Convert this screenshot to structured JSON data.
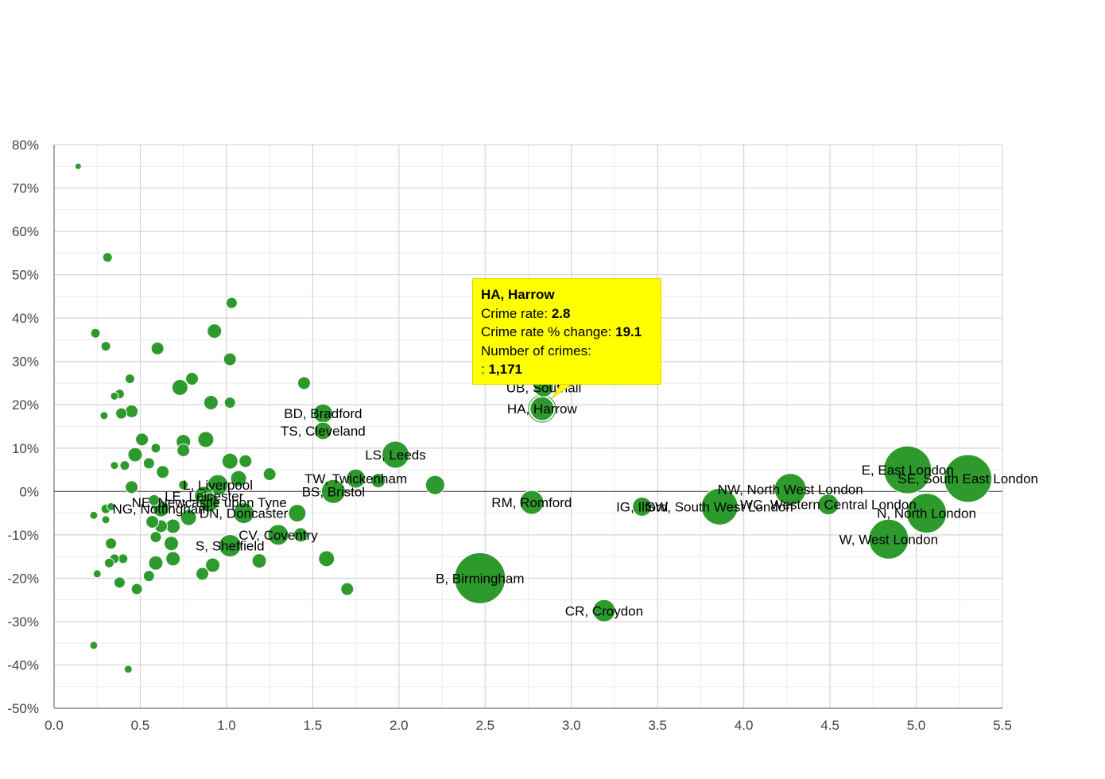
{
  "colors": {
    "bubble": "#2e9a2e",
    "bubble_stroke": "#ffffff",
    "grid": "#d0d0d0",
    "minor_grid": "#ebebeb",
    "zero_line": "#333333",
    "tooltip_bg": "#ffff00"
  },
  "tooltip": {
    "title": "HA, Harrow",
    "rate_label": "Crime rate:",
    "rate_value": "2.8",
    "change_label": "Crime rate % change:",
    "change_value": "19.1",
    "count_label": "Number of crimes:",
    "count_prefix": ":",
    "count_value": "1,171"
  },
  "chart_data": {
    "type": "scatter",
    "title": "",
    "xlabel": "",
    "ylabel": "",
    "xlim": [
      0,
      5.5
    ],
    "ylim": [
      -50,
      80
    ],
    "x_ticks": [
      "0.0",
      "0.5",
      "1.0",
      "1.5",
      "2.0",
      "2.5",
      "3.0",
      "3.5",
      "4.0",
      "4.5",
      "5.0",
      "5.5"
    ],
    "y_ticks": [
      "80%",
      "70%",
      "60%",
      "50%",
      "40%",
      "30%",
      "20%",
      "10%",
      "0%",
      "-10%",
      "-20%",
      "-30%",
      "-40%",
      "-50%"
    ],
    "grid": true,
    "highlighted": "HA, Harrow",
    "points": [
      {
        "x": 4.95,
        "y": 5,
        "size": 30,
        "label": "E, East London"
      },
      {
        "x": 5.3,
        "y": 3,
        "size": 30,
        "label": "SE, South East London"
      },
      {
        "x": 5.06,
        "y": -5,
        "size": 25,
        "label": "N, North London"
      },
      {
        "x": 4.84,
        "y": -11,
        "size": 25,
        "label": "W, West London"
      },
      {
        "x": 4.27,
        "y": 0.5,
        "size": 20,
        "label": "NW, North West London"
      },
      {
        "x": 4.49,
        "y": -3,
        "size": 13,
        "label": "WC, Western Central London"
      },
      {
        "x": 3.86,
        "y": -3.5,
        "size": 23,
        "label": "SW, South West London"
      },
      {
        "x": 3.41,
        "y": -3.5,
        "size": 12,
        "label": "IG, Ilford"
      },
      {
        "x": 2.77,
        "y": -2.5,
        "size": 15,
        "label": "RM, Romford"
      },
      {
        "x": 2.84,
        "y": 24,
        "size": 12,
        "label": "UB, Southall"
      },
      {
        "x": 2.83,
        "y": 19.1,
        "size": 15,
        "label": "HA, Harrow"
      },
      {
        "x": 3.19,
        "y": -27.5,
        "size": 14,
        "label": "CR, Croydon"
      },
      {
        "x": 2.47,
        "y": -20,
        "size": 32,
        "label": "B, Birmingham"
      },
      {
        "x": 1.98,
        "y": 8.5,
        "size": 17,
        "label": "LS, Leeds"
      },
      {
        "x": 1.56,
        "y": 18,
        "size": 12,
        "label": "BD, Bradford"
      },
      {
        "x": 1.56,
        "y": 14,
        "size": 11,
        "label": "TS, Cleveland"
      },
      {
        "x": 1.75,
        "y": 3,
        "size": 12,
        "label": "TW, Twickenham"
      },
      {
        "x": 1.62,
        "y": 0,
        "size": 15,
        "label": "BS, Bristol"
      },
      {
        "x": 1.3,
        "y": -10,
        "size": 13,
        "label": "CV, Coventry"
      },
      {
        "x": 1.02,
        "y": -12.5,
        "size": 14,
        "label": "S, Sheffield"
      },
      {
        "x": 1.1,
        "y": -5,
        "size": 13,
        "label": "DN, Doncaster"
      },
      {
        "x": 0.95,
        "y": 1.5,
        "size": 13,
        "label": "L, Liverpool"
      },
      {
        "x": 0.87,
        "y": -1,
        "size": 12,
        "label": "LE, Leicester"
      },
      {
        "x": 0.9,
        "y": -2.5,
        "size": 12,
        "label": "NE, Newcastle upon Tyne"
      },
      {
        "x": 0.62,
        "y": -4,
        "size": 10,
        "label": "NG, Nottingham"
      },
      {
        "x": 2.21,
        "y": 1.5,
        "size": 12
      },
      {
        "x": 1.88,
        "y": 2.5,
        "size": 9
      },
      {
        "x": 1.45,
        "y": 25,
        "size": 8
      },
      {
        "x": 1.58,
        "y": -15.5,
        "size": 10
      },
      {
        "x": 1.7,
        "y": -22.5,
        "size": 8
      },
      {
        "x": 1.43,
        "y": -10,
        "size": 9
      },
      {
        "x": 1.41,
        "y": -5,
        "size": 11
      },
      {
        "x": 1.25,
        "y": 4,
        "size": 8
      },
      {
        "x": 1.19,
        "y": -16,
        "size": 9
      },
      {
        "x": 1.11,
        "y": 7,
        "size": 8
      },
      {
        "x": 1.07,
        "y": 3,
        "size": 10
      },
      {
        "x": 1.03,
        "y": 43.5,
        "size": 7
      },
      {
        "x": 1.02,
        "y": 30.5,
        "size": 8
      },
      {
        "x": 1.02,
        "y": 20.5,
        "size": 7
      },
      {
        "x": 1.02,
        "y": 7,
        "size": 10
      },
      {
        "x": 0.93,
        "y": 37,
        "size": 9
      },
      {
        "x": 0.91,
        "y": 20.5,
        "size": 9
      },
      {
        "x": 0.92,
        "y": -17,
        "size": 9
      },
      {
        "x": 0.88,
        "y": 12,
        "size": 10
      },
      {
        "x": 0.86,
        "y": -19,
        "size": 8
      },
      {
        "x": 0.8,
        "y": 26,
        "size": 8
      },
      {
        "x": 0.78,
        "y": -6,
        "size": 10
      },
      {
        "x": 0.75,
        "y": 11.5,
        "size": 9
      },
      {
        "x": 0.75,
        "y": 9.5,
        "size": 8
      },
      {
        "x": 0.73,
        "y": 24,
        "size": 10
      },
      {
        "x": 0.75,
        "y": 1.5,
        "size": 6
      },
      {
        "x": 0.69,
        "y": -8,
        "size": 9
      },
      {
        "x": 0.68,
        "y": -12,
        "size": 9
      },
      {
        "x": 0.69,
        "y": -15.5,
        "size": 9
      },
      {
        "x": 0.63,
        "y": 4.5,
        "size": 8
      },
      {
        "x": 0.62,
        "y": -8,
        "size": 8
      },
      {
        "x": 0.6,
        "y": 33,
        "size": 8
      },
      {
        "x": 0.59,
        "y": 10,
        "size": 6
      },
      {
        "x": 0.59,
        "y": -10.5,
        "size": 7
      },
      {
        "x": 0.59,
        "y": -16.5,
        "size": 9
      },
      {
        "x": 0.58,
        "y": -2,
        "size": 7
      },
      {
        "x": 0.57,
        "y": -7,
        "size": 8
      },
      {
        "x": 0.55,
        "y": 6.5,
        "size": 7
      },
      {
        "x": 0.55,
        "y": -19.5,
        "size": 7
      },
      {
        "x": 0.51,
        "y": 12,
        "size": 8
      },
      {
        "x": 0.47,
        "y": 8.5,
        "size": 9
      },
      {
        "x": 0.48,
        "y": -22.5,
        "size": 7
      },
      {
        "x": 0.45,
        "y": 1,
        "size": 8
      },
      {
        "x": 0.45,
        "y": 18.5,
        "size": 8
      },
      {
        "x": 0.44,
        "y": 26,
        "size": 6
      },
      {
        "x": 0.43,
        "y": -41,
        "size": 5
      },
      {
        "x": 0.41,
        "y": 6,
        "size": 6
      },
      {
        "x": 0.4,
        "y": -15.5,
        "size": 6
      },
      {
        "x": 0.39,
        "y": 18,
        "size": 7
      },
      {
        "x": 0.38,
        "y": 22.5,
        "size": 6
      },
      {
        "x": 0.38,
        "y": -21,
        "size": 7
      },
      {
        "x": 0.35,
        "y": 22,
        "size": 5
      },
      {
        "x": 0.35,
        "y": 6,
        "size": 5
      },
      {
        "x": 0.35,
        "y": -15.5,
        "size": 6
      },
      {
        "x": 0.33,
        "y": -12,
        "size": 7
      },
      {
        "x": 0.33,
        "y": -3.5,
        "size": 5
      },
      {
        "x": 0.32,
        "y": -16.5,
        "size": 6
      },
      {
        "x": 0.31,
        "y": 54,
        "size": 6
      },
      {
        "x": 0.3,
        "y": 33.5,
        "size": 6
      },
      {
        "x": 0.3,
        "y": -4,
        "size": 6
      },
      {
        "x": 0.3,
        "y": -6.5,
        "size": 5
      },
      {
        "x": 0.29,
        "y": 17.5,
        "size": 5
      },
      {
        "x": 0.25,
        "y": -19,
        "size": 5
      },
      {
        "x": 0.24,
        "y": 36.5,
        "size": 6
      },
      {
        "x": 0.23,
        "y": -5.5,
        "size": 5
      },
      {
        "x": 0.23,
        "y": -35.5,
        "size": 5
      },
      {
        "x": 0.14,
        "y": 75,
        "size": 4
      }
    ]
  }
}
